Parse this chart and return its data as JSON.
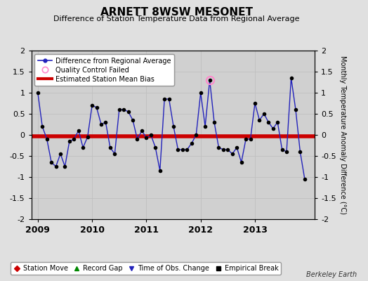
{
  "title": "ARNETT 8WSW MESONET",
  "subtitle": "Difference of Station Temperature Data from Regional Average",
  "ylabel": "Monthly Temperature Anomaly Difference (°C)",
  "background_color": "#e0e0e0",
  "plot_bg_color": "#d0d0d0",
  "ylim": [
    -2,
    2
  ],
  "bias_value": -0.04,
  "bias_color": "#cc0000",
  "line_color": "#2222bb",
  "marker_color": "#000000",
  "qc_fail_index": 38,
  "qc_fail_color": "#ff88cc",
  "times": [
    2009.0,
    2009.083,
    2009.167,
    2009.25,
    2009.333,
    2009.417,
    2009.5,
    2009.583,
    2009.667,
    2009.75,
    2009.833,
    2009.917,
    2010.0,
    2010.083,
    2010.167,
    2010.25,
    2010.333,
    2010.417,
    2010.5,
    2010.583,
    2010.667,
    2010.75,
    2010.833,
    2010.917,
    2011.0,
    2011.083,
    2011.167,
    2011.25,
    2011.333,
    2011.417,
    2011.5,
    2011.583,
    2011.667,
    2011.75,
    2011.833,
    2011.917,
    2012.0,
    2012.083,
    2012.167,
    2012.25,
    2012.333,
    2012.417,
    2012.5,
    2012.583,
    2012.667,
    2012.75,
    2012.833,
    2012.917,
    2013.0,
    2013.083,
    2013.167,
    2013.25,
    2013.333,
    2013.417,
    2013.5,
    2013.583,
    2013.667,
    2013.75,
    2013.833,
    2013.917
  ],
  "values": [
    1.0,
    0.2,
    -0.1,
    -0.65,
    -0.75,
    -0.45,
    -0.75,
    -0.15,
    -0.1,
    0.1,
    -0.3,
    -0.05,
    0.7,
    0.65,
    0.25,
    0.3,
    -0.3,
    -0.45,
    0.6,
    0.6,
    0.55,
    0.35,
    -0.1,
    0.1,
    -0.07,
    0.0,
    -0.3,
    -0.85,
    0.85,
    0.85,
    0.2,
    -0.35,
    -0.35,
    -0.35,
    -0.2,
    0.0,
    1.0,
    0.2,
    1.3,
    0.3,
    -0.3,
    -0.35,
    -0.35,
    -0.45,
    -0.3,
    -0.65,
    -0.1,
    -0.1,
    0.75,
    0.35,
    0.5,
    0.3,
    0.15,
    0.3,
    -0.35,
    -0.4,
    1.35,
    0.6,
    -0.4,
    -1.05
  ],
  "xtick_positions": [
    2009,
    2010,
    2011,
    2012,
    2013
  ],
  "xtick_labels": [
    "2009",
    "2010",
    "2011",
    "2012",
    "2013"
  ],
  "ytick_positions": [
    -2,
    -1.5,
    -1,
    -0.5,
    0,
    0.5,
    1,
    1.5,
    2
  ],
  "ytick_labels": [
    "-2",
    "-1.5",
    "-1",
    "-0.5",
    "0",
    "0.5",
    "1",
    "1.5",
    "2"
  ],
  "grid_color": "#c0c0c0",
  "berkeley_earth_text": "Berkeley Earth",
  "title_fontsize": 11,
  "subtitle_fontsize": 8,
  "tick_fontsize": 8,
  "ylabel_fontsize": 7,
  "legend_fontsize": 7
}
